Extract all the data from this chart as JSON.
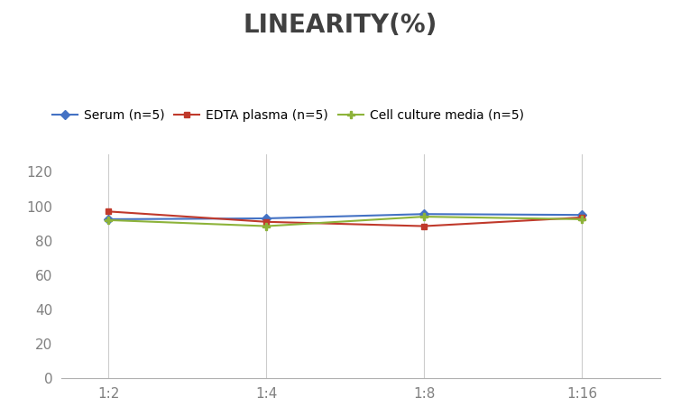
{
  "title": "LINEARITY(%)",
  "title_fontsize": 20,
  "title_fontweight": "bold",
  "title_color": "#404040",
  "x_labels": [
    "1:2",
    "1:4",
    "1:8",
    "1:16"
  ],
  "x_values": [
    0,
    1,
    2,
    3
  ],
  "series": [
    {
      "label": "Serum (n=5)",
      "values": [
        92.5,
        93.0,
        95.5,
        95.0
      ],
      "color": "#4472C4",
      "marker": "D",
      "markersize": 5
    },
    {
      "label": "EDTA plasma (n=5)",
      "values": [
        97.0,
        91.0,
        88.5,
        93.5
      ],
      "color": "#C0392B",
      "marker": "s",
      "markersize": 5
    },
    {
      "label": "Cell culture media (n=5)",
      "values": [
        92.0,
        88.5,
        94.0,
        92.5
      ],
      "color": "#8DB33A",
      "marker": "P",
      "markersize": 6
    }
  ],
  "ylim": [
    0,
    130
  ],
  "yticks": [
    0,
    20,
    40,
    60,
    80,
    100,
    120
  ],
  "grid_color": "#CCCCCC",
  "background_color": "#FFFFFF",
  "legend_fontsize": 10,
  "axis_fontsize": 11,
  "tick_color": "#808080"
}
